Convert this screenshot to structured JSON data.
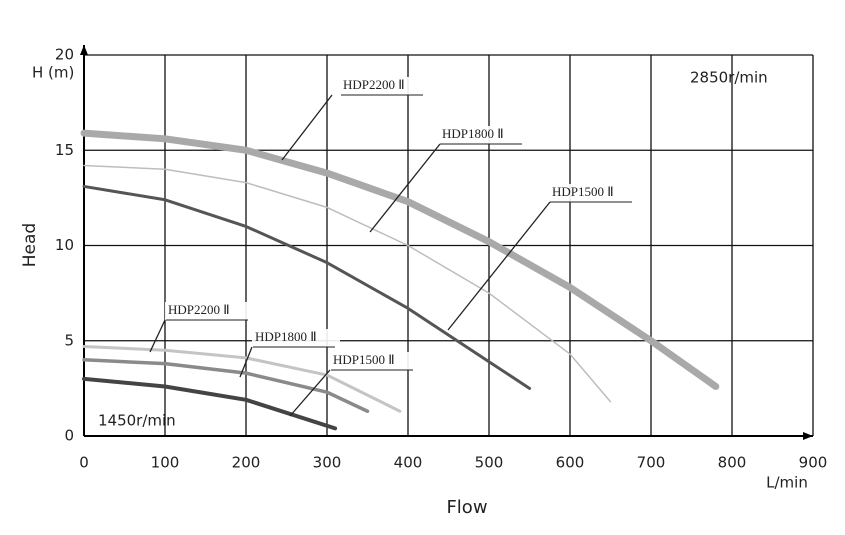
{
  "chart_data": {
    "type": "line",
    "y_label": "Head",
    "y_unit": "H (m)",
    "x_label": "Flow",
    "x_unit": "L/min",
    "annotations": [
      "2850r/min",
      "1450r/min"
    ],
    "xlim": [
      0,
      900
    ],
    "xticks": [
      0,
      100,
      200,
      300,
      400,
      500,
      600,
      700,
      800,
      900
    ],
    "ylim": [
      0,
      20
    ],
    "yticks": [
      0,
      5,
      10,
      15,
      20
    ],
    "grid": true,
    "series": [
      {
        "name": "HDP2200 Ⅱ",
        "color": "#a9a9a9",
        "x": [
          0,
          100,
          200,
          300,
          400,
          500,
          600,
          700,
          780
        ],
        "values": [
          15.9,
          15.6,
          15.0,
          13.8,
          12.3,
          10.2,
          7.8,
          5.0,
          2.6
        ]
      },
      {
        "name": "HDP1800 Ⅱ",
        "color": "#bdbdbd",
        "x": [
          0,
          100,
          200,
          300,
          400,
          500,
          600,
          650
        ],
        "values": [
          14.2,
          14.0,
          13.3,
          12.0,
          10.0,
          7.5,
          4.3,
          1.8
        ]
      },
      {
        "name": "HDP1500 Ⅱ",
        "color": "#555555",
        "x": [
          0,
          100,
          200,
          300,
          400,
          500,
          550
        ],
        "values": [
          13.1,
          12.4,
          11.0,
          9.1,
          6.7,
          3.9,
          2.5
        ]
      },
      {
        "name": "HDP2200 Ⅱ",
        "color": "#c4c4c4",
        "x": [
          0,
          100,
          200,
          300,
          390
        ],
        "values": [
          4.7,
          4.5,
          4.1,
          3.2,
          1.3
        ]
      },
      {
        "name": "HDP1800 Ⅱ",
        "color": "#8a8a8a",
        "x": [
          0,
          100,
          200,
          300,
          350
        ],
        "values": [
          4.0,
          3.8,
          3.3,
          2.3,
          1.3
        ]
      },
      {
        "name": "HDP1500 Ⅱ",
        "color": "#444444",
        "x": [
          0,
          100,
          200,
          310
        ],
        "values": [
          3.0,
          2.6,
          1.9,
          0.4
        ]
      }
    ]
  }
}
